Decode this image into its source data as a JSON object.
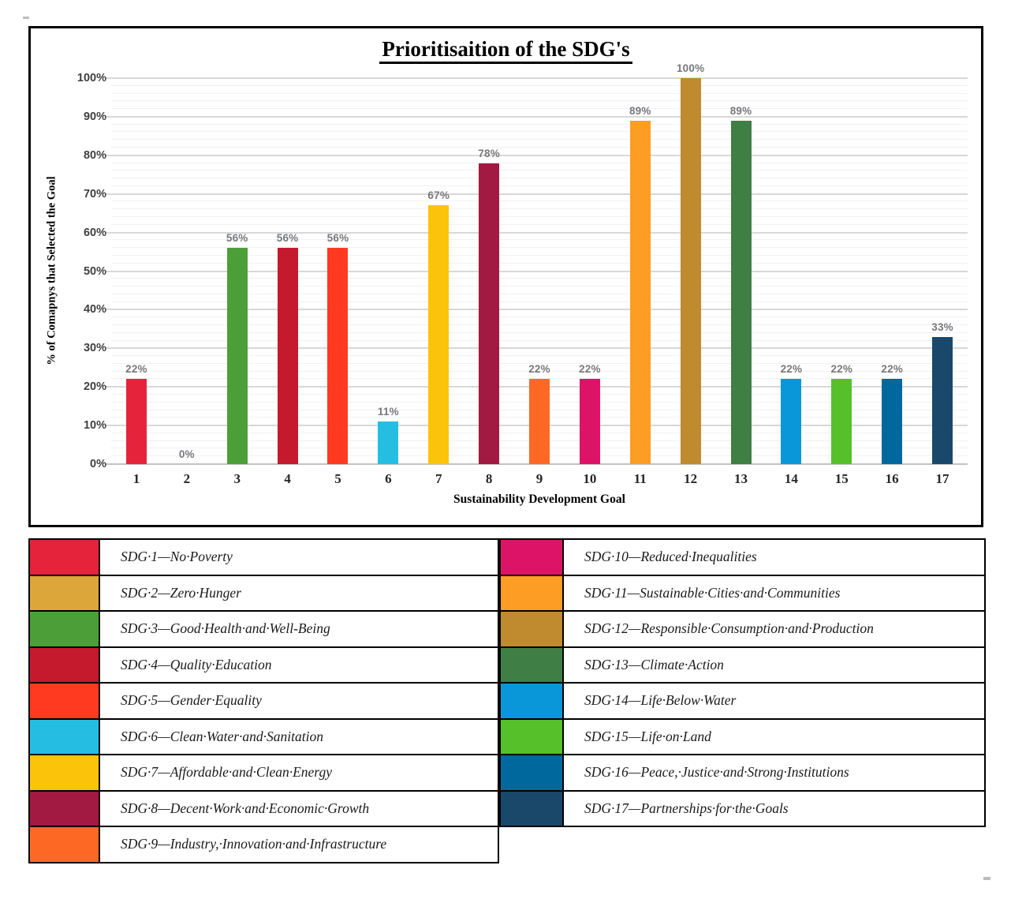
{
  "chart_data": {
    "type": "bar",
    "title": "Prioritisaition of the SDG's",
    "xlabel": "Sustainability Development Goal",
    "ylabel": "% of Comapnys that Selected the Goal",
    "categories": [
      "1",
      "2",
      "3",
      "4",
      "5",
      "6",
      "7",
      "8",
      "9",
      "10",
      "11",
      "12",
      "13",
      "14",
      "15",
      "16",
      "17"
    ],
    "values": [
      22,
      0,
      56,
      56,
      56,
      11,
      67,
      78,
      22,
      22,
      89,
      100,
      89,
      22,
      22,
      22,
      33
    ],
    "bar_labels": [
      "22%",
      "0%",
      "56%",
      "56%",
      "56%",
      "11%",
      "67%",
      "78%",
      "22%",
      "22%",
      "89%",
      "100%",
      "89%",
      "22%",
      "22%",
      "22%",
      "33%"
    ],
    "colors": [
      "#E5243B",
      "#DDA63A",
      "#4C9F38",
      "#C5192D",
      "#FF3A21",
      "#26BDE2",
      "#FCC30B",
      "#A21942",
      "#FD6925",
      "#DD1367",
      "#FD9D24",
      "#BF8B2E",
      "#3F7E44",
      "#0A97D9",
      "#56C02B",
      "#00689D",
      "#19486A"
    ],
    "ylim": [
      0,
      100
    ],
    "y_major_unit": 10,
    "y_minor_unit": 2,
    "y_tick_labels": [
      "0%",
      "10%",
      "20%",
      "30%",
      "40%",
      "50%",
      "60%",
      "70%",
      "80%",
      "90%",
      "100%"
    ],
    "grid": true,
    "legend_position": "table-below-chart"
  },
  "legend": {
    "columns": [
      {
        "items": [
          {
            "color": "#E5243B",
            "label": "SDG·1—No·Poverty"
          },
          {
            "color": "#DDA63A",
            "label": "SDG·2—Zero·Hunger"
          },
          {
            "color": "#4C9F38",
            "label": "SDG·3—Good·Health·and·Well-Being"
          },
          {
            "color": "#C5192D",
            "label": "SDG·4—Quality·Education"
          },
          {
            "color": "#FF3A21",
            "label": "SDG·5—Gender·Equality"
          },
          {
            "color": "#26BDE2",
            "label": "SDG·6—Clean·Water·and·Sanitation"
          },
          {
            "color": "#FCC30B",
            "label": "SDG·7—Affordable·and·Clean·Energy"
          },
          {
            "color": "#A21942",
            "label": "SDG·8—Decent·Work·and·Economic·Growth"
          },
          {
            "color": "#FD6925",
            "label": "SDG·9—Industry,·Innovation·and·Infrastructure"
          }
        ]
      },
      {
        "items": [
          {
            "color": "#DD1367",
            "label": "SDG·10—Reduced·Inequalities"
          },
          {
            "color": "#FD9D24",
            "label": "SDG·11—Sustainable·Cities·and·Communities"
          },
          {
            "color": "#BF8B2E",
            "label": "SDG·12—Responsible·Consumption·and·Production"
          },
          {
            "color": "#3F7E44",
            "label": "SDG·13—Climate·Action"
          },
          {
            "color": "#0A97D9",
            "label": "SDG·14—Life·Below·Water"
          },
          {
            "color": "#56C02B",
            "label": "SDG·15—Life·on·Land"
          },
          {
            "color": "#00689D",
            "label": "SDG·16—Peace,·Justice·and·Strong·Institutions"
          },
          {
            "color": "#19486A",
            "label": "SDG·17—Partnerships·for·the·Goals"
          }
        ]
      }
    ]
  }
}
